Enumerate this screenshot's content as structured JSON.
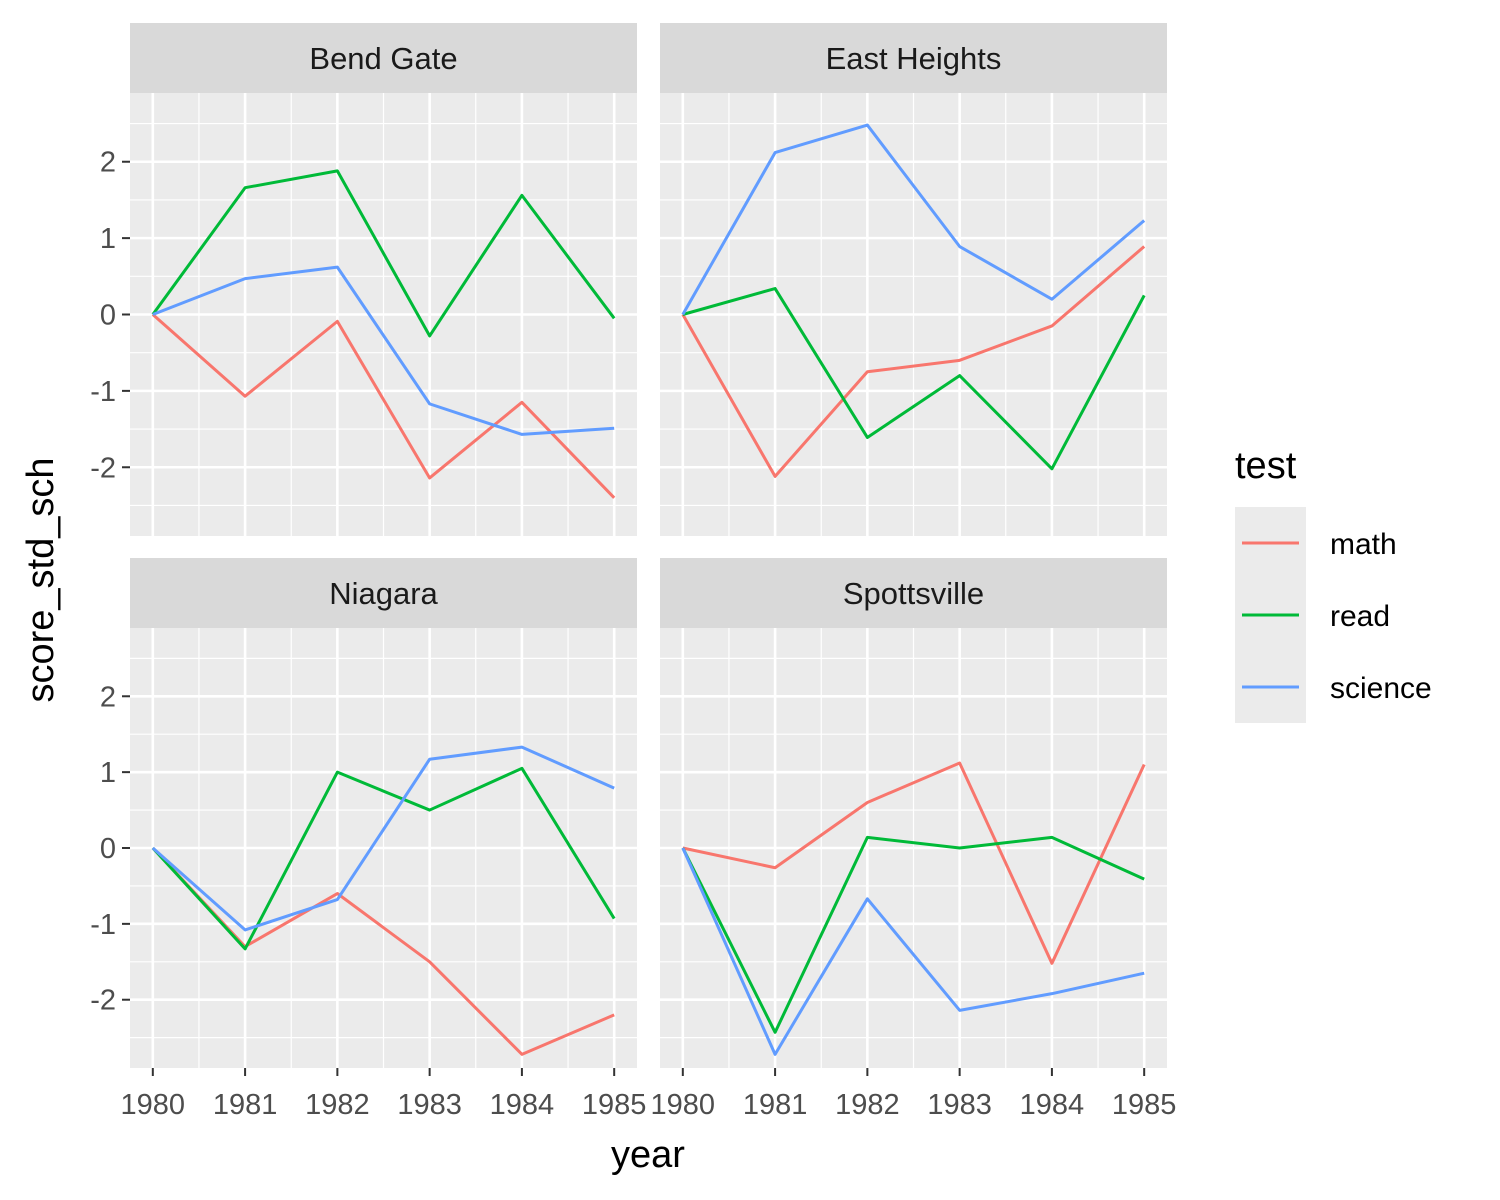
{
  "chart_data": {
    "type": "line",
    "xlabel": "year",
    "ylabel": "score_std_sch",
    "x": [
      1980,
      1981,
      1982,
      1983,
      1984,
      1985
    ],
    "ylim": [
      -2.9,
      2.9
    ],
    "yticks": [
      -2,
      -1,
      0,
      1,
      2
    ],
    "grid": true,
    "legend": {
      "title": "test",
      "position": "right",
      "entries": [
        {
          "name": "math",
          "color": "#F8766D"
        },
        {
          "name": "read",
          "color": "#00BA38"
        },
        {
          "name": "science",
          "color": "#619CFF"
        }
      ]
    },
    "panels": [
      {
        "title": "Bend Gate",
        "series": [
          {
            "name": "math",
            "values": [
              0,
              -1.07,
              -0.09,
              -2.14,
              -1.15,
              -2.4
            ]
          },
          {
            "name": "read",
            "values": [
              0,
              1.66,
              1.88,
              -0.28,
              1.56,
              -0.05
            ]
          },
          {
            "name": "science",
            "values": [
              0,
              0.47,
              0.62,
              -1.17,
              -1.57,
              -1.49
            ]
          }
        ]
      },
      {
        "title": "East Heights",
        "series": [
          {
            "name": "math",
            "values": [
              0,
              -2.12,
              -0.75,
              -0.6,
              -0.15,
              0.89
            ]
          },
          {
            "name": "read",
            "values": [
              0,
              0.34,
              -1.61,
              -0.8,
              -2.02,
              0.25
            ]
          },
          {
            "name": "science",
            "values": [
              0,
              2.12,
              2.48,
              0.89,
              0.2,
              1.23
            ]
          }
        ]
      },
      {
        "title": "Niagara",
        "series": [
          {
            "name": "math",
            "values": [
              0,
              -1.3,
              -0.6,
              -1.5,
              -2.72,
              -2.2
            ]
          },
          {
            "name": "read",
            "values": [
              0,
              -1.33,
              1.0,
              0.5,
              1.05,
              -0.93
            ]
          },
          {
            "name": "science",
            "values": [
              0,
              -1.08,
              -0.68,
              1.17,
              1.33,
              0.79
            ]
          }
        ]
      },
      {
        "title": "Spottsville",
        "series": [
          {
            "name": "math",
            "values": [
              0,
              -0.26,
              0.6,
              1.12,
              -1.52,
              1.1
            ]
          },
          {
            "name": "read",
            "values": [
              0,
              -2.43,
              0.14,
              0.0,
              0.14,
              -0.41
            ]
          },
          {
            "name": "science",
            "values": [
              0,
              -2.72,
              -0.67,
              -2.14,
              -1.92,
              -1.65
            ]
          }
        ]
      }
    ]
  }
}
